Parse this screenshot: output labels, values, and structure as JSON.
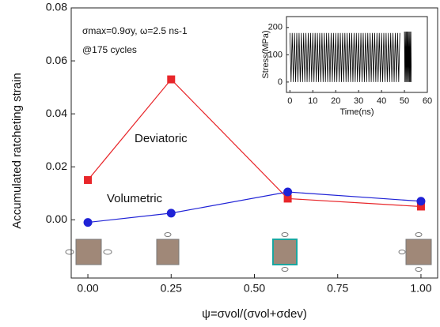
{
  "chart_data": [
    {
      "type": "line",
      "annotations": [
        "σmax=0.9σy, ω=2.5 ns-1",
        "@175 cycles",
        "Deviatoric",
        "Volumetric"
      ],
      "xlabel": "ψ=σvol/(σvol+σdev)",
      "ylabel": "Accumulated ratcheting strain",
      "x": [
        0,
        0.25,
        0.6,
        1.0
      ],
      "series": [
        {
          "name": "Deviatoric",
          "color": "#e8262a",
          "marker": "square",
          "values": [
            0.015,
            0.053,
            0.008,
            0.005
          ]
        },
        {
          "name": "Volumetric",
          "color": "#1f22d6",
          "marker": "circle",
          "values": [
            -0.001,
            0.0025,
            0.0105,
            0.007
          ]
        }
      ],
      "xlim": [
        -0.05,
        1.05
      ],
      "ylim": [
        -0.022,
        0.08
      ],
      "xticks": [
        {
          "value": 0,
          "label": "0.00"
        },
        {
          "value": 0.25,
          "label": "0.25"
        },
        {
          "value": 0.5,
          "label": "0.50"
        },
        {
          "value": 0.75,
          "label": "0.75"
        },
        {
          "value": 1,
          "label": "1.00"
        }
      ],
      "yticks": [
        {
          "value": 0,
          "label": "0.00"
        },
        {
          "value": 0.02,
          "label": "0.02"
        },
        {
          "value": 0.04,
          "label": "0.04"
        },
        {
          "value": 0.06,
          "label": "0.06"
        },
        {
          "value": 0.08,
          "label": "0.08"
        }
      ]
    },
    {
      "type": "line",
      "xlabel": "Time(ns)",
      "ylabel": "Stress(MPa)",
      "series": [
        {
          "color": "#000000",
          "x": [
            0,
            0.5,
            1,
            1.5,
            2,
            2.5,
            3,
            3.5,
            4,
            4.5,
            5,
            5.5,
            6,
            6.5,
            7,
            7.5,
            8,
            8.5,
            9,
            9.5,
            10,
            10.5,
            11,
            11.5,
            12,
            12.5,
            13,
            13.5,
            14,
            14.5,
            15,
            15.5,
            16,
            16.5,
            17,
            17.5,
            18,
            18.5,
            19,
            19.5,
            20,
            20.5,
            21,
            21.5,
            22,
            22.5,
            23,
            23.5,
            24,
            24.5,
            25,
            25.5,
            26,
            26.5,
            27,
            27.5,
            28,
            28.5,
            29,
            29.5,
            30,
            30.5,
            31,
            31.5,
            32,
            32.5,
            33,
            33.5,
            34,
            34.5,
            35,
            35.5,
            36,
            36.5,
            37,
            37.5,
            38,
            38.5,
            39,
            39.5,
            40,
            40.5,
            41,
            41.5,
            42,
            42.5,
            43,
            43.5,
            44,
            44.5,
            45,
            45.5,
            46,
            46.5,
            47,
            47.5,
            48
          ],
          "values": [
            180,
            0,
            180,
            0,
            180,
            0,
            180,
            0,
            180,
            0,
            180,
            0,
            180,
            0,
            180,
            0,
            180,
            0,
            180,
            0,
            180,
            0,
            180,
            0,
            180,
            0,
            180,
            0,
            180,
            0,
            180,
            0,
            180,
            0,
            180,
            0,
            180,
            0,
            180,
            0,
            180,
            0,
            180,
            0,
            180,
            0,
            180,
            0,
            180,
            0,
            180,
            0,
            180,
            0,
            180,
            0,
            180,
            0,
            180,
            0,
            180,
            0,
            180,
            0,
            180,
            0,
            180,
            0,
            180,
            0,
            180,
            0,
            180,
            0,
            180,
            0,
            180,
            0,
            180,
            0,
            180,
            0,
            180,
            0,
            180,
            0,
            180,
            0,
            180,
            0,
            180,
            0,
            180,
            0,
            180,
            0,
            180
          ]
        },
        {
          "color": "#000000",
          "x": [
            50,
            50.2,
            50.4,
            50.6,
            50.8,
            51,
            51.2,
            51.4,
            51.6,
            51.8,
            52,
            52.2,
            52.4,
            52.6,
            52.8,
            53
          ],
          "values": [
            185,
            0,
            185,
            0,
            185,
            0,
            185,
            0,
            185,
            0,
            185,
            0,
            185,
            0,
            185,
            0
          ]
        }
      ],
      "xlim": [
        -1.5,
        60
      ],
      "ylim": [
        -38,
        240
      ],
      "xticks": [
        0,
        10,
        20,
        30,
        40,
        50,
        60
      ],
      "yticks": [
        0,
        100,
        200
      ]
    }
  ]
}
